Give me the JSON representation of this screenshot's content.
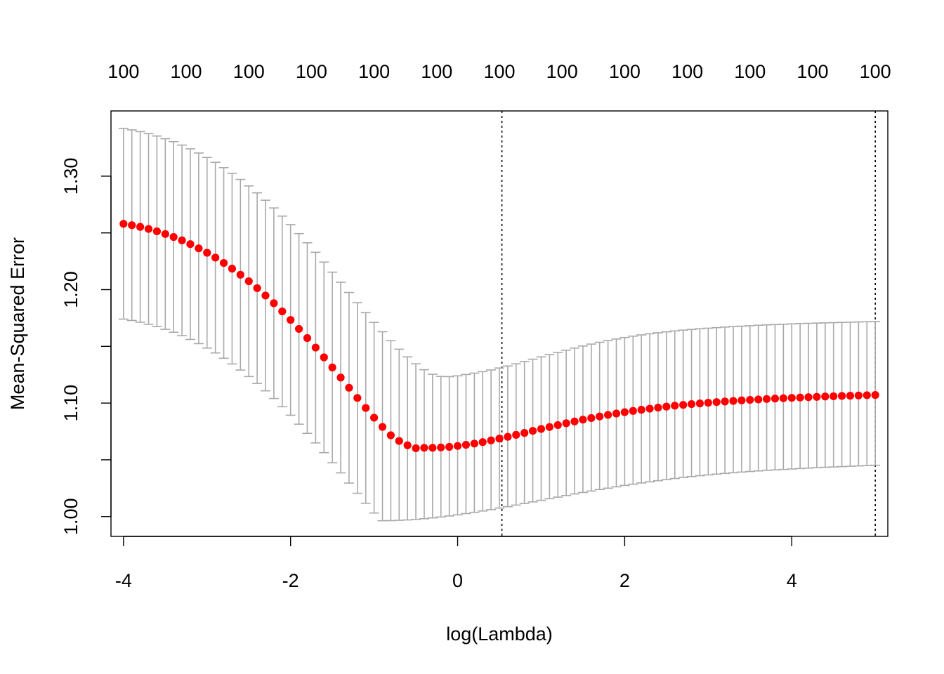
{
  "chart_data": {
    "type": "scatter",
    "title": "",
    "xlabel": "log(Lambda)",
    "ylabel": "Mean-Squared Error",
    "xlim": [
      -4.15,
      5.15
    ],
    "ylim": [
      0.9825,
      1.3575
    ],
    "x_ticks": [
      -4,
      -2,
      0,
      2,
      4
    ],
    "x_tick_labels": [
      "-4",
      "-2",
      "0",
      "2",
      "4"
    ],
    "y_ticks": [
      1.0,
      1.05,
      1.1,
      1.15,
      1.2,
      1.25,
      1.3
    ],
    "y_tick_labels": [
      "1.00",
      "",
      "1.10",
      "",
      "1.20",
      "",
      "1.30"
    ],
    "top_axis_labels": [
      "100",
      "100",
      "100",
      "100",
      "100",
      "100",
      "100",
      "100",
      "100",
      "100",
      "100",
      "100",
      "100"
    ],
    "vertical_reference_lines": [
      0.53,
      5.0
    ],
    "grid": false,
    "colors": {
      "points": "#ff0000",
      "error_bars": "#a9a9a9",
      "reference_lines": "#000000"
    },
    "series": [
      {
        "x": [
          -4.0,
          -3.9,
          -3.8,
          -3.7,
          -3.6,
          -3.5,
          -3.4,
          -3.3,
          -3.2,
          -3.1,
          -3.0,
          -2.9,
          -2.8,
          -2.7,
          -2.6,
          -2.5,
          -2.4,
          -2.3,
          -2.2,
          -2.1,
          -2.0,
          -1.9,
          -1.8,
          -1.7,
          -1.6,
          -1.5,
          -1.4,
          -1.3,
          -1.2,
          -1.1,
          -1.0,
          -0.9,
          -0.8,
          -0.7,
          -0.6,
          -0.5,
          -0.4,
          -0.3,
          -0.2,
          -0.1,
          0.0,
          0.1,
          0.2,
          0.3,
          0.4,
          0.5,
          0.6,
          0.7,
          0.8,
          0.9,
          1.0,
          1.1,
          1.2,
          1.3,
          1.4,
          1.5,
          1.6,
          1.7,
          1.8,
          1.9,
          2.0,
          2.1,
          2.2,
          2.3,
          2.4,
          2.5,
          2.6,
          2.7,
          2.8,
          2.9,
          3.0,
          3.1,
          3.2,
          3.3,
          3.4,
          3.5,
          3.6,
          3.7,
          3.8,
          3.9,
          4.0,
          4.1,
          4.2,
          4.3,
          4.4,
          4.5,
          4.6,
          4.7,
          4.8,
          4.9,
          5.0
        ],
        "y": [
          1.258,
          1.2568,
          1.2553,
          1.2535,
          1.2514,
          1.249,
          1.2464,
          1.2434,
          1.2401,
          1.2364,
          1.2325,
          1.2282,
          1.2235,
          1.2185,
          1.2131,
          1.2074,
          1.2013,
          1.1948,
          1.188,
          1.1808,
          1.1733,
          1.1654,
          1.1573,
          1.1489,
          1.1403,
          1.1314,
          1.1225,
          1.1135,
          1.1045,
          1.0957,
          1.0871,
          1.079,
          1.0716,
          1.0666,
          1.0628,
          1.0602,
          1.0606,
          1.0606,
          1.0609,
          1.0614,
          1.0622,
          1.0632,
          1.0643,
          1.0656,
          1.0671,
          1.0687,
          1.0703,
          1.072,
          1.0737,
          1.0755,
          1.0772,
          1.0789,
          1.0806,
          1.0822,
          1.0838,
          1.0854,
          1.0868,
          1.0882,
          1.0896,
          1.0908,
          1.092,
          1.0931,
          1.0941,
          1.0951,
          1.096,
          1.0969,
          1.0977,
          1.0984,
          1.0991,
          1.0997,
          1.1003,
          1.1009,
          1.1014,
          1.1019,
          1.1024,
          1.1028,
          1.1032,
          1.1036,
          1.104,
          1.1043,
          1.1046,
          1.1049,
          1.1052,
          1.1055,
          1.1058,
          1.106,
          1.1063,
          1.1065,
          1.1067,
          1.1069,
          1.1071
        ],
        "upper": [
          1.342,
          1.3408,
          1.3393,
          1.3375,
          1.3354,
          1.333,
          1.3304,
          1.3274,
          1.3241,
          1.3204,
          1.3165,
          1.3122,
          1.3075,
          1.3025,
          1.2971,
          1.2914,
          1.2853,
          1.2788,
          1.272,
          1.2648,
          1.2573,
          1.2494,
          1.2413,
          1.2329,
          1.2243,
          1.2154,
          1.2065,
          1.1975,
          1.1885,
          1.1797,
          1.1711,
          1.1629,
          1.155,
          1.1475,
          1.1407,
          1.1346,
          1.1294,
          1.1254,
          1.1235,
          1.1233,
          1.124,
          1.1252,
          1.1264,
          1.1277,
          1.1292,
          1.1309,
          1.1327,
          1.1346,
          1.1366,
          1.1387,
          1.1407,
          1.1427,
          1.1447,
          1.1466,
          1.1485,
          1.1503,
          1.152,
          1.1536,
          1.1551,
          1.1565,
          1.1578,
          1.159,
          1.1601,
          1.1611,
          1.162,
          1.1628,
          1.1636,
          1.1643,
          1.1649,
          1.1655,
          1.166,
          1.1665,
          1.167,
          1.1674,
          1.1678,
          1.1682,
          1.1686,
          1.1689,
          1.1692,
          1.1695,
          1.1698,
          1.1701,
          1.1703,
          1.1705,
          1.1707,
          1.1709,
          1.1711,
          1.1713,
          1.1715,
          1.1717,
          1.1719
        ],
        "lower": [
          1.174,
          1.1728,
          1.1713,
          1.1695,
          1.1674,
          1.165,
          1.1624,
          1.1594,
          1.1561,
          1.1524,
          1.1485,
          1.1442,
          1.1395,
          1.1345,
          1.1291,
          1.1234,
          1.1173,
          1.1108,
          1.104,
          1.0968,
          1.0893,
          1.0814,
          1.0733,
          1.0649,
          1.0563,
          1.0474,
          1.0385,
          1.0295,
          1.0205,
          1.0117,
          1.0031,
          0.9963,
          0.9964,
          0.9967,
          0.997,
          0.9975,
          0.9981,
          0.9988,
          0.9996,
          1.0005,
          1.0015,
          1.0026,
          1.0037,
          1.0049,
          1.0061,
          1.0074,
          1.0087,
          1.0101,
          1.0115,
          1.0129,
          1.0143,
          1.0157,
          1.0171,
          1.0185,
          1.0199,
          1.0212,
          1.0225,
          1.0238,
          1.025,
          1.0262,
          1.0274,
          1.0285,
          1.0296,
          1.0306,
          1.0316,
          1.0326,
          1.0335,
          1.0344,
          1.0352,
          1.036,
          1.0367,
          1.0374,
          1.038,
          1.0386,
          1.0392,
          1.0397,
          1.0402,
          1.0407,
          1.0411,
          1.0415,
          1.0419,
          1.0423,
          1.0427,
          1.0431,
          1.0434,
          1.0437,
          1.044,
          1.0443,
          1.0446,
          1.0449,
          1.0452
        ]
      }
    ]
  }
}
